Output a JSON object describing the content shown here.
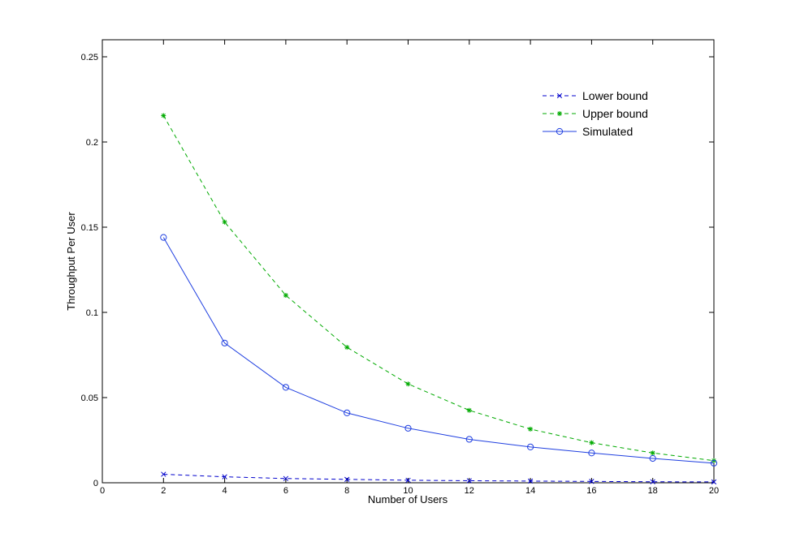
{
  "chart_data": {
    "type": "line",
    "xlabel": "Number of Users",
    "ylabel": "Throughput Per User",
    "xlim": [
      0,
      20
    ],
    "ylim": [
      0,
      0.26
    ],
    "xticks": [
      0,
      2,
      4,
      6,
      8,
      10,
      12,
      14,
      16,
      18,
      20
    ],
    "yticks": [
      0,
      0.05,
      0.1,
      0.15,
      0.2,
      0.25
    ],
    "xtick_labels": [
      "0",
      "2",
      "4",
      "6",
      "8",
      "10",
      "12",
      "14",
      "16",
      "18",
      "20"
    ],
    "ytick_labels": [
      "0",
      "0.05",
      "0.1",
      "0.15",
      "0.2",
      "0.25"
    ],
    "grid": false,
    "legend_position": "top-right",
    "x": [
      2,
      4,
      6,
      8,
      10,
      12,
      14,
      16,
      18,
      20
    ],
    "series": [
      {
        "name": "Lower bound",
        "color": "#0000cc",
        "line_style": "dashed",
        "marker": "x",
        "values": [
          0.005,
          0.0035,
          0.0025,
          0.002,
          0.0015,
          0.0012,
          0.001,
          0.0008,
          0.0006,
          0.0005
        ]
      },
      {
        "name": "Upper bound",
        "color": "#00aa00",
        "line_style": "dashed",
        "marker": "asterisk",
        "values": [
          0.2155,
          0.153,
          0.11,
          0.0795,
          0.058,
          0.0425,
          0.0315,
          0.0235,
          0.0175,
          0.013
        ]
      },
      {
        "name": "Simulated",
        "color": "#1f3fe0",
        "line_style": "solid",
        "marker": "circle",
        "values": [
          0.144,
          0.082,
          0.056,
          0.041,
          0.032,
          0.0255,
          0.021,
          0.0175,
          0.0143,
          0.0115
        ]
      }
    ]
  }
}
